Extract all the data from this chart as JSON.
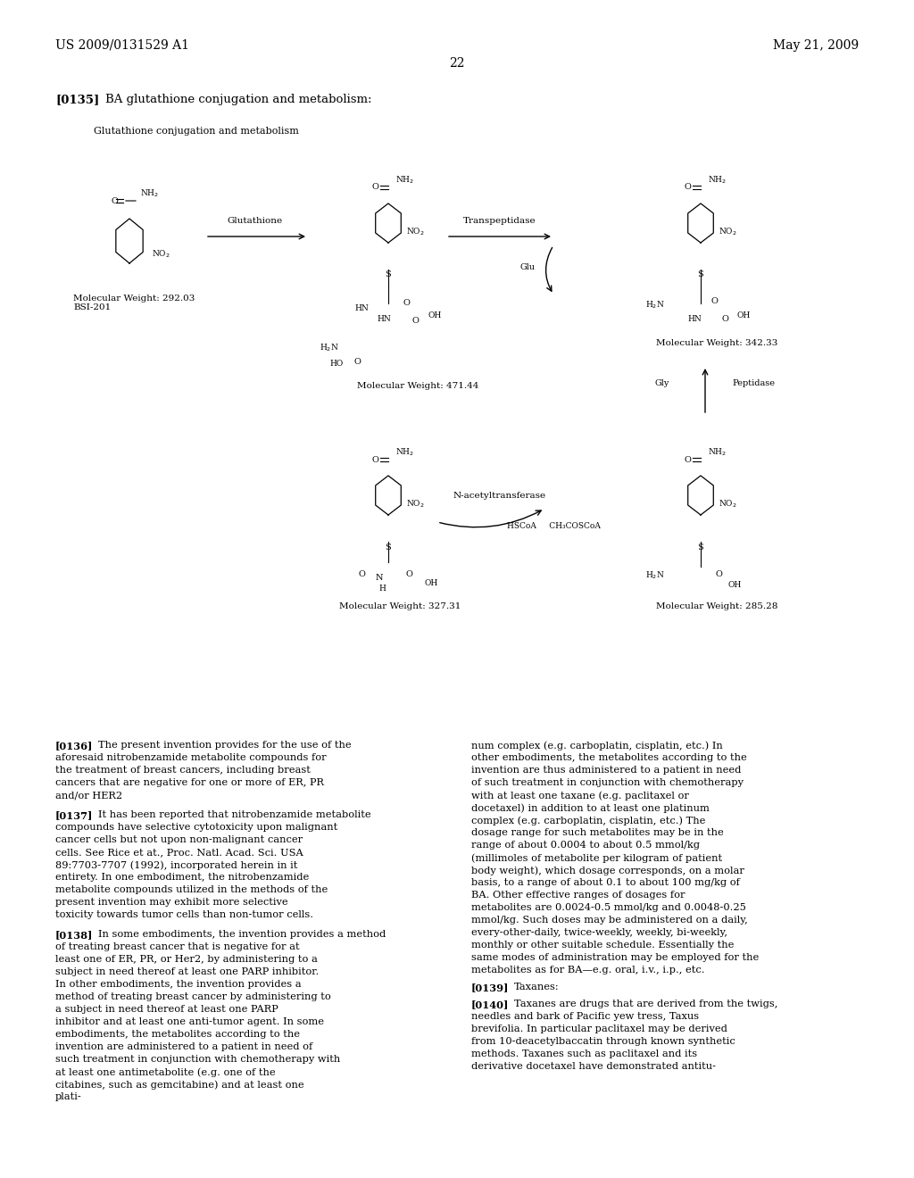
{
  "bg_color": "#ffffff",
  "header_left": "US 2009/0131529 A1",
  "header_right": "May 21, 2009",
  "page_number": "22",
  "para135_label": "[0135]",
  "para135_text": "BA glutathione conjugation and metabolism:",
  "diagram_title": "Glutathione conjugation and metabolism",
  "mw1": "Molecular Weight: 292.03\nBSI-201",
  "mw2": "Molecular Weight: 471.44",
  "mw3": "Molecular Weight: 342.33",
  "mw4": "Molecular Weight: 327.31",
  "mw5": "Molecular Weight: 285.28",
  "arrow1_label": "Glutathione",
  "arrow2_label": "Transpeptidase",
  "arrow3_label": "Glu",
  "arrow4_label": "Gly",
  "arrow5_label": "Peptidase",
  "arrow6_label": "N-acetyltransferase",
  "arrow6b_label": "HSCoA     CH₃COSCoA",
  "para136_label": "[0136]",
  "para136_text": "The present invention provides for the use of the aforesaid nitrobenzamide metabolite compounds for the treatment of breast cancers, including breast cancers that are negative for one or more of ER, PR and/or HER2",
  "para137_label": "[0137]",
  "para137_text": "It has been reported that nitrobenzamide metabolite compounds have selective cytotoxicity upon malignant cancer cells but not upon non-malignant cancer cells. See Rice et at., Proc. Natl. Acad. Sci. USA 89:7703-7707 (1992), incorporated herein in it entirety. In one embodiment, the nitrobenzamide metabolite compounds utilized in the methods of the present invention may exhibit more selective toxicity towards tumor cells than non-tumor cells.",
  "para138_label": "[0138]",
  "para138_text": "In some embodiments, the invention provides a method of treating breast cancer that is negative for at least one of ER, PR, or Her2, by administering to a subject in need thereof at least one PARP inhibitor. In other embodiments, the invention provides a method of treating breast cancer by administering to a subject in need thereof at least one PARP inhibitor and at least one anti-tumor agent. In some embodiments, the metabolites according to the invention are administered to a patient in need of such treatment in conjunction with chemotherapy with at least one antimetabolite (e.g. one of the citabines, such as gemcitabine) and at least one plati-",
  "para136r_text": "num complex (e.g. carboplatin, cisplatin, etc.) In other embodiments, the metabolites according to the invention are thus administered to a patient in need of such treatment in conjunction with chemotherapy with at least one taxane (e.g. paclitaxel or docetaxel) in addition to at least one platinum complex (e.g. carboplatin, cisplatin, etc.) The dosage range for such metabolites may be in the range of about 0.0004 to about 0.5 mmol/kg (millimoles of metabolite per kilogram of patient body weight), which dosage corresponds, on a molar basis, to a range of about 0.1 to about 100 mg/kg of BA. Other effective ranges of dosages for metabolites are 0.0024-0.5 mmol/kg and 0.0048-0.25 mmol/kg. Such doses may be administered on a daily, every-other-daily, twice-weekly, weekly, bi-weekly, monthly or other suitable schedule. Essentially the same modes of administration may be employed for the metabolites as for BA—e.g. oral, i.v., i.p., etc.",
  "para139_label": "[0139]",
  "para139_text": "Taxanes:",
  "para140_label": "[0140]",
  "para140_text": "Taxanes are drugs that are derived from the twigs, needles and bark of Pacific yew tress, Taxus brevifolia. In particular paclitaxel may be derived from 10-deacetylbaccatin through known synthetic methods. Taxanes such as paclitaxel and its derivative docetaxel have demonstrated antitu-"
}
